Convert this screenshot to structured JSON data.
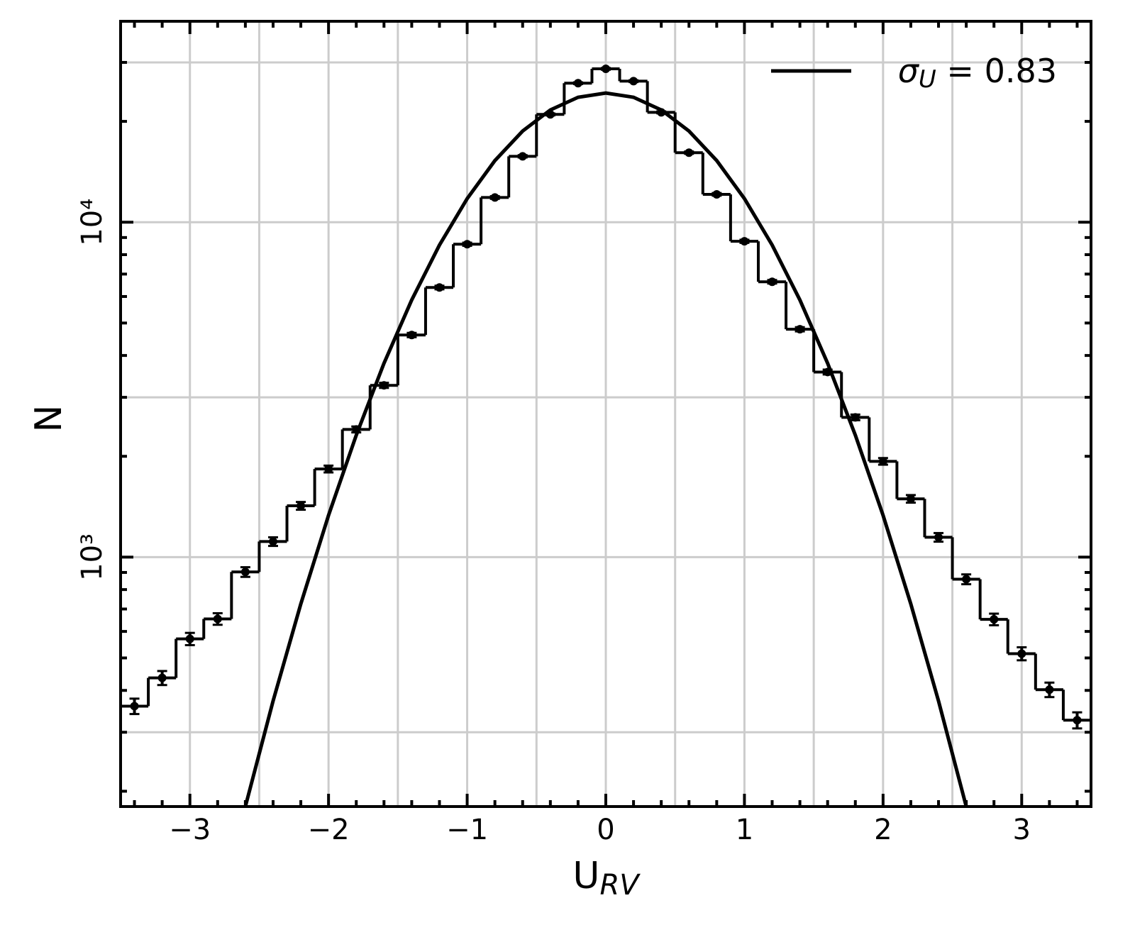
{
  "chart_data": {
    "type": "histogram",
    "xlabel": "URV",
    "ylabel": "N",
    "bins": [
      -3.5,
      -3.3,
      -3.1,
      -2.9,
      -2.7,
      -2.5,
      -2.3,
      -2.1,
      -1.9,
      -1.7,
      -1.5,
      -1.3,
      -1.1,
      -0.9,
      -0.7,
      -0.5,
      -0.3,
      -0.1,
      0.1,
      0.3,
      0.5,
      0.7,
      0.9,
      1.1,
      1.3,
      1.5,
      1.7,
      1.9,
      2.1,
      2.3,
      2.5,
      2.7,
      2.9,
      3.1,
      3.3,
      3.5
    ],
    "counts": [
      359,
      436,
      570,
      654,
      903,
      1113,
      1423,
      1833,
      2406,
      3258,
      4604,
      6383,
      8596,
      11850,
      15730,
      20980,
      26000,
      28700,
      26370,
      21280,
      16130,
      12110,
      8770,
      6640,
      4790,
      3570,
      2614,
      1932,
      1493,
      1146,
      859,
      652,
      515,
      402,
      326
    ],
    "errors": [
      19,
      21,
      24,
      26,
      30,
      33,
      38,
      43,
      49,
      57,
      68,
      80,
      93,
      109,
      125,
      145,
      161,
      169,
      162,
      146,
      127,
      110,
      94,
      81,
      69,
      60,
      51,
      44,
      39,
      34,
      29,
      26,
      23,
      20,
      18
    ],
    "color": "#000000",
    "fit": {
      "name": "σU = 0.83",
      "color": "#000000",
      "x": [
        -2.6,
        -2.4,
        -2.2,
        -2.0,
        -1.8,
        -1.6,
        -1.4,
        -1.2,
        -1.0,
        -0.8,
        -0.6,
        -0.4,
        -0.2,
        0,
        0.2,
        0.4,
        0.6,
        0.8,
        1.0,
        1.2,
        1.4,
        1.6,
        1.8,
        2.0,
        2.2,
        2.4,
        2.6
      ],
      "values": [
        180,
        372,
        725,
        1333,
        2313,
        3791,
        5859,
        8544,
        11759,
        15273,
        18713,
        21637,
        23605,
        24300,
        23605,
        21637,
        18713,
        15273,
        11759,
        8544,
        5859,
        3791,
        2313,
        1333,
        725,
        372,
        180
      ]
    },
    "xlim": [
      -3.5,
      3.5
    ],
    "ylim": [
      180,
      39800
    ],
    "log_y": true,
    "xticks": [
      {
        "value": -3,
        "label": "−3"
      },
      {
        "value": -2,
        "label": "−2"
      },
      {
        "value": -1,
        "label": "−1"
      },
      0,
      1,
      2,
      3
    ],
    "yticks": [
      {
        "value": 1000,
        "label": "10³"
      },
      {
        "value": 10000,
        "label": "10⁴"
      }
    ],
    "x_minor_ticks": [
      -3.4,
      -3.2,
      -2.8,
      -2.6,
      -2.4,
      -2.2,
      -1.8,
      -1.6,
      -1.4,
      -1.2,
      -0.8,
      -0.6,
      -0.4,
      -0.2,
      0.2,
      0.4,
      0.6,
      0.8,
      1.2,
      1.4,
      1.6,
      1.8,
      2.2,
      2.4,
      2.6,
      2.8,
      3.2,
      3.4
    ],
    "y_minor_ticks": [
      200,
      300,
      400,
      500,
      600,
      700,
      800,
      900,
      2000,
      3000,
      4000,
      5000,
      6000,
      7000,
      8000,
      9000,
      20000,
      30000
    ],
    "grid": true,
    "x_minor_grid": [
      -2.5,
      -1.5,
      -0.5,
      0.5,
      1.5,
      2.5
    ],
    "y_minor_grid": [
      300,
      3000,
      30000
    ],
    "legend": "upper right"
  }
}
